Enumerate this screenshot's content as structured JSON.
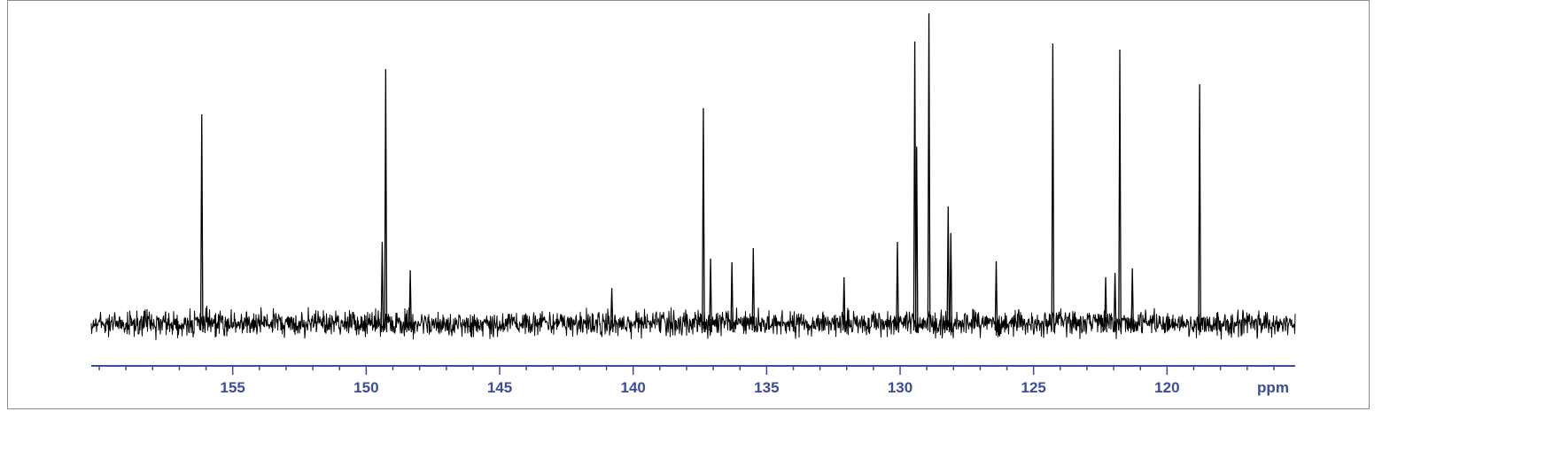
{
  "chart_data": {
    "type": "line",
    "title": "",
    "xlabel": "ppm",
    "ylabel": "",
    "xlim": [
      160.3,
      115.2
    ],
    "x_reversed": true,
    "grid": false,
    "major_ticks": [
      155,
      150,
      145,
      140,
      135,
      130,
      125,
      120
    ],
    "minor_tick_step": 1,
    "tick_labels": [
      "155",
      "150",
      "145",
      "140",
      "135",
      "130",
      "125",
      "120"
    ],
    "peaks": [
      {
        "ppm": 156.16,
        "intensity": 67.4
      },
      {
        "ppm": 149.4,
        "intensity": 26.3
      },
      {
        "ppm": 149.27,
        "intensity": 82.0
      },
      {
        "ppm": 148.35,
        "intensity": 17.1
      },
      {
        "ppm": 140.8,
        "intensity": 11.4
      },
      {
        "ppm": 137.37,
        "intensity": 69.4
      },
      {
        "ppm": 137.1,
        "intensity": 20.9
      },
      {
        "ppm": 136.3,
        "intensity": 19.7
      },
      {
        "ppm": 135.5,
        "intensity": 24.3
      },
      {
        "ppm": 132.1,
        "intensity": 14.9
      },
      {
        "ppm": 130.1,
        "intensity": 26.3
      },
      {
        "ppm": 129.45,
        "intensity": 90.9
      },
      {
        "ppm": 129.38,
        "intensity": 57.0
      },
      {
        "ppm": 128.92,
        "intensity": 100.0
      },
      {
        "ppm": 128.2,
        "intensity": 37.7
      },
      {
        "ppm": 128.1,
        "intensity": 29.1
      },
      {
        "ppm": 126.4,
        "intensity": 20.0
      },
      {
        "ppm": 124.28,
        "intensity": 90.3
      },
      {
        "ppm": 122.3,
        "intensity": 14.9
      },
      {
        "ppm": 121.95,
        "intensity": 16.3
      },
      {
        "ppm": 121.77,
        "intensity": 88.3
      },
      {
        "ppm": 121.3,
        "intensity": 17.7
      },
      {
        "ppm": 118.78,
        "intensity": 77.1
      }
    ],
    "colors": {
      "trace": "#000000",
      "axis": "#3b4c9b",
      "frame": "#8a8a8a"
    }
  }
}
